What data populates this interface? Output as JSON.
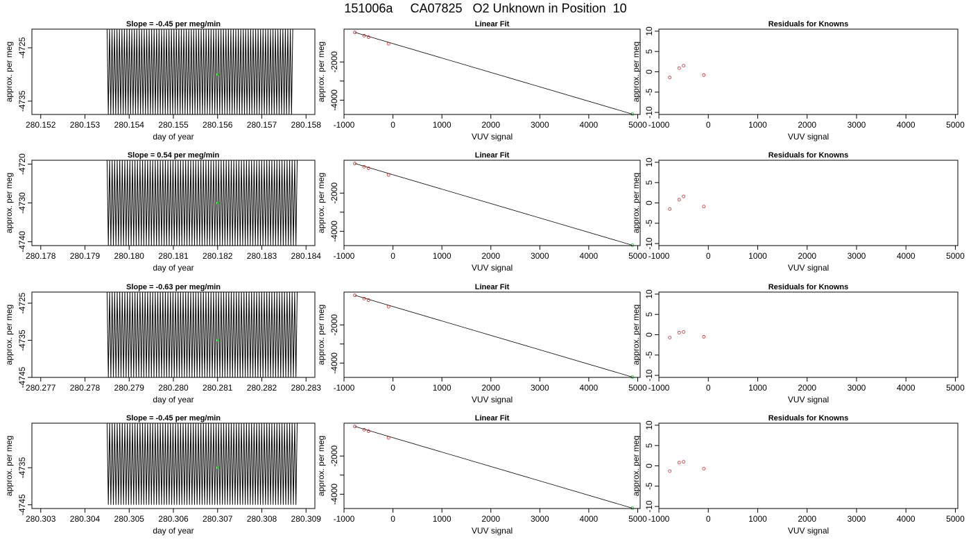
{
  "figure": {
    "title": "151006a     CA07825   O2 Unknown in Position  10",
    "colors": {
      "trace": "#000000",
      "unknown_point": "#22cc22",
      "known_point": "#cc2222",
      "fit_line": "#000000",
      "axes": "#000000"
    }
  },
  "chart_data": [
    {
      "type": "line",
      "panel": "timeseries",
      "row": 1,
      "title": "Slope =  -0.45  per meg/min",
      "xlabel": "day of year",
      "ylabel": "approx. per meg",
      "xlim": [
        280.1518,
        280.1582
      ],
      "ylim": [
        -4737.5,
        -4721.5
      ],
      "xticks": [
        280.152,
        280.153,
        280.154,
        280.155,
        280.156,
        280.157,
        280.158
      ],
      "xtick_labels": [
        "280.152",
        "280.153",
        "280.154",
        "280.155",
        "280.156",
        "280.157",
        "280.158"
      ],
      "yticks": [
        -4725,
        -4735
      ],
      "ytick_labels": [
        "-4725",
        "-4735"
      ],
      "trace": {
        "x_start": 280.1535,
        "x_end": 280.1577,
        "hi": -4721.5,
        "lo": -4737.5,
        "cycles": 75
      },
      "highlight": {
        "x": 280.156,
        "y": -4730
      }
    },
    {
      "type": "scatter",
      "panel": "linearfit",
      "row": 1,
      "title": "Linear Fit",
      "xlabel": "VUV signal",
      "ylabel": "approx. per meg",
      "xlim": [
        -1000,
        5050
      ],
      "ylim": [
        -4750,
        -280
      ],
      "xticks": [
        -1000,
        0,
        1000,
        2000,
        3000,
        4000,
        5000
      ],
      "xtick_labels": [
        "-1000",
        "0",
        "1000",
        "2000",
        "3000",
        "4000",
        "5000"
      ],
      "yticks": [
        -2000,
        -3000,
        -4000
      ],
      "ytick_labels": [
        "-2000",
        "",
        "-4000"
      ],
      "known_points": [
        {
          "x": -780,
          "y": -450
        },
        {
          "x": -590,
          "y": -620
        },
        {
          "x": -500,
          "y": -700
        },
        {
          "x": -90,
          "y": -1050
        }
      ],
      "unknown_point": {
        "x": 4890,
        "y": -4730
      },
      "fit_line": [
        {
          "x": -780,
          "y": -450
        },
        {
          "x": 4890,
          "y": -4730
        }
      ]
    },
    {
      "type": "scatter",
      "panel": "residuals",
      "row": 1,
      "title": "Residuals for Knowns",
      "xlabel": "VUV signal",
      "ylabel": "approx. per meg",
      "xlim": [
        -1000,
        5050
      ],
      "ylim": [
        -10.5,
        10.5
      ],
      "xticks": [
        -1000,
        0,
        1000,
        2000,
        3000,
        4000,
        5000
      ],
      "xtick_labels": [
        "-1000",
        "0",
        "1000",
        "2000",
        "3000",
        "4000",
        "5000"
      ],
      "yticks": [
        10,
        5,
        0,
        -5,
        -10
      ],
      "ytick_labels": [
        "10",
        "5",
        "0",
        "-5",
        "-10"
      ],
      "points": [
        {
          "x": -780,
          "y": -1.4
        },
        {
          "x": -590,
          "y": 0.9
        },
        {
          "x": -500,
          "y": 1.5
        },
        {
          "x": -90,
          "y": -0.8
        }
      ]
    },
    {
      "type": "line",
      "panel": "timeseries",
      "row": 2,
      "title": "Slope =  0.54  per meg/min",
      "xlabel": "day of year",
      "ylabel": "approx. per meg",
      "xlim": [
        280.1778,
        280.1842
      ],
      "ylim": [
        -4741,
        -4719
      ],
      "xticks": [
        280.178,
        280.179,
        280.18,
        280.181,
        280.182,
        280.183,
        280.184
      ],
      "xtick_labels": [
        "280.178",
        "280.179",
        "280.180",
        "280.181",
        "280.182",
        "280.183",
        "280.184"
      ],
      "yticks": [
        -4720,
        -4730,
        -4740
      ],
      "ytick_labels": [
        "-4720",
        "-4730",
        "-4740"
      ],
      "trace": {
        "x_start": 280.1795,
        "x_end": 280.1838,
        "hi": -4719,
        "lo": -4741,
        "cycles": 75
      },
      "highlight": {
        "x": 280.182,
        "y": -4730
      }
    },
    {
      "type": "scatter",
      "panel": "linearfit",
      "row": 2,
      "title": "Linear Fit",
      "xlabel": "VUV signal",
      "ylabel": "approx. per meg",
      "xlim": [
        -1000,
        5050
      ],
      "ylim": [
        -4750,
        -280
      ],
      "xticks": [
        -1000,
        0,
        1000,
        2000,
        3000,
        4000,
        5000
      ],
      "xtick_labels": [
        "-1000",
        "0",
        "1000",
        "2000",
        "3000",
        "4000",
        "5000"
      ],
      "yticks": [
        -2000,
        -3000,
        -4000
      ],
      "ytick_labels": [
        "-2000",
        "",
        "-4000"
      ],
      "known_points": [
        {
          "x": -780,
          "y": -450
        },
        {
          "x": -590,
          "y": -620
        },
        {
          "x": -500,
          "y": -700
        },
        {
          "x": -90,
          "y": -1050
        }
      ],
      "unknown_point": {
        "x": 4890,
        "y": -4730
      },
      "fit_line": [
        {
          "x": -780,
          "y": -450
        },
        {
          "x": 4890,
          "y": -4730
        }
      ]
    },
    {
      "type": "scatter",
      "panel": "residuals",
      "row": 2,
      "title": "Residuals for Knowns",
      "xlabel": "VUV signal",
      "ylabel": "approx. per meg",
      "xlim": [
        -1000,
        5050
      ],
      "ylim": [
        -10.5,
        10.5
      ],
      "xticks": [
        -1000,
        0,
        1000,
        2000,
        3000,
        4000,
        5000
      ],
      "xtick_labels": [
        "-1000",
        "0",
        "1000",
        "2000",
        "3000",
        "4000",
        "5000"
      ],
      "yticks": [
        10,
        5,
        0,
        -5,
        -10
      ],
      "ytick_labels": [
        "10",
        "5",
        "0",
        "-5",
        "-10"
      ],
      "points": [
        {
          "x": -780,
          "y": -1.5
        },
        {
          "x": -590,
          "y": 0.8
        },
        {
          "x": -500,
          "y": 1.6
        },
        {
          "x": -90,
          "y": -0.9
        }
      ]
    },
    {
      "type": "line",
      "panel": "timeseries",
      "row": 3,
      "title": "Slope =  -0.63  per meg/min",
      "xlabel": "day of year",
      "ylabel": "approx. per meg",
      "xlim": [
        280.2768,
        280.2832
      ],
      "ylim": [
        -4745,
        -4722
      ],
      "xticks": [
        280.277,
        280.278,
        280.279,
        280.28,
        280.281,
        280.282,
        280.283
      ],
      "xtick_labels": [
        "280.277",
        "280.278",
        "280.279",
        "280.280",
        "280.281",
        "280.282",
        "280.283"
      ],
      "yticks": [
        -4725,
        -4735,
        -4745
      ],
      "ytick_labels": [
        "-4725",
        "-4735",
        "-4745"
      ],
      "trace": {
        "x_start": 280.2785,
        "x_end": 280.2828,
        "hi": -4722,
        "lo": -4745,
        "cycles": 75
      },
      "highlight": {
        "x": 280.281,
        "y": -4735
      }
    },
    {
      "type": "scatter",
      "panel": "linearfit",
      "row": 3,
      "title": "Linear Fit",
      "xlabel": "VUV signal",
      "ylabel": "approx. per meg",
      "xlim": [
        -1000,
        5050
      ],
      "ylim": [
        -4750,
        -280
      ],
      "xticks": [
        -1000,
        0,
        1000,
        2000,
        3000,
        4000,
        5000
      ],
      "xtick_labels": [
        "-1000",
        "0",
        "1000",
        "2000",
        "3000",
        "4000",
        "5000"
      ],
      "yticks": [
        -2000,
        -3000,
        -4000
      ],
      "ytick_labels": [
        "-2000",
        "",
        "-4000"
      ],
      "known_points": [
        {
          "x": -780,
          "y": -450
        },
        {
          "x": -590,
          "y": -620
        },
        {
          "x": -500,
          "y": -700
        },
        {
          "x": -90,
          "y": -1050
        }
      ],
      "unknown_point": {
        "x": 4890,
        "y": -4730
      },
      "fit_line": [
        {
          "x": -780,
          "y": -450
        },
        {
          "x": 4890,
          "y": -4730
        }
      ]
    },
    {
      "type": "scatter",
      "panel": "residuals",
      "row": 3,
      "title": "Residuals for Knowns",
      "xlabel": "VUV signal",
      "ylabel": "approx. per meg",
      "xlim": [
        -1000,
        5050
      ],
      "ylim": [
        -10.5,
        10.5
      ],
      "xticks": [
        -1000,
        0,
        1000,
        2000,
        3000,
        4000,
        5000
      ],
      "xtick_labels": [
        "-1000",
        "0",
        "1000",
        "2000",
        "3000",
        "4000",
        "5000"
      ],
      "yticks": [
        10,
        5,
        0,
        -5,
        -10
      ],
      "ytick_labels": [
        "10",
        "5",
        "0",
        "-5",
        "-10"
      ],
      "points": [
        {
          "x": -780,
          "y": -0.7
        },
        {
          "x": -590,
          "y": 0.5
        },
        {
          "x": -500,
          "y": 0.7
        },
        {
          "x": -90,
          "y": -0.5
        }
      ]
    },
    {
      "type": "line",
      "panel": "timeseries",
      "row": 4,
      "title": "Slope =  -0.45  per meg/min",
      "xlabel": "day of year",
      "ylabel": "approx. per meg",
      "xlim": [
        280.3028,
        280.3092
      ],
      "ylim": [
        -4746,
        -4723
      ],
      "xticks": [
        280.303,
        280.304,
        280.305,
        280.306,
        280.307,
        280.308,
        280.309
      ],
      "xtick_labels": [
        "280.303",
        "280.304",
        "280.305",
        "280.306",
        "280.307",
        "280.308",
        "280.309"
      ],
      "yticks": [
        -4735,
        -4745
      ],
      "ytick_labels": [
        "-4735",
        "-4745"
      ],
      "trace": {
        "x_start": 280.3045,
        "x_end": 280.3088,
        "hi": -4723,
        "lo": -4745,
        "cycles": 75
      },
      "highlight": {
        "x": 280.307,
        "y": -4735
      }
    },
    {
      "type": "scatter",
      "panel": "linearfit",
      "row": 4,
      "title": "Linear Fit",
      "xlabel": "VUV signal",
      "ylabel": "approx. per meg",
      "xlim": [
        -1000,
        5050
      ],
      "ylim": [
        -4750,
        -280
      ],
      "xticks": [
        -1000,
        0,
        1000,
        2000,
        3000,
        4000,
        5000
      ],
      "xtick_labels": [
        "-1000",
        "0",
        "1000",
        "2000",
        "3000",
        "4000",
        "5000"
      ],
      "yticks": [
        -2000,
        -3000,
        -4000
      ],
      "ytick_labels": [
        "-2000",
        "",
        "-4000"
      ],
      "known_points": [
        {
          "x": -780,
          "y": -450
        },
        {
          "x": -590,
          "y": -620
        },
        {
          "x": -500,
          "y": -700
        },
        {
          "x": -90,
          "y": -1050
        }
      ],
      "unknown_point": {
        "x": 4890,
        "y": -4730
      },
      "fit_line": [
        {
          "x": -780,
          "y": -450
        },
        {
          "x": 4890,
          "y": -4730
        }
      ]
    },
    {
      "type": "scatter",
      "panel": "residuals",
      "row": 4,
      "title": "Residuals for Knowns",
      "xlabel": "VUV signal",
      "ylabel": "approx. per meg",
      "xlim": [
        -1000,
        5050
      ],
      "ylim": [
        -10.5,
        10.5
      ],
      "xticks": [
        -1000,
        0,
        1000,
        2000,
        3000,
        4000,
        5000
      ],
      "xtick_labels": [
        "-1000",
        "0",
        "1000",
        "2000",
        "3000",
        "4000",
        "5000"
      ],
      "yticks": [
        10,
        5,
        0,
        -5,
        -10
      ],
      "ytick_labels": [
        "10",
        "5",
        "0",
        "-5",
        "-10"
      ],
      "points": [
        {
          "x": -780,
          "y": -1.3
        },
        {
          "x": -590,
          "y": 0.8
        },
        {
          "x": -500,
          "y": 1.0
        },
        {
          "x": -90,
          "y": -0.7
        }
      ]
    }
  ]
}
